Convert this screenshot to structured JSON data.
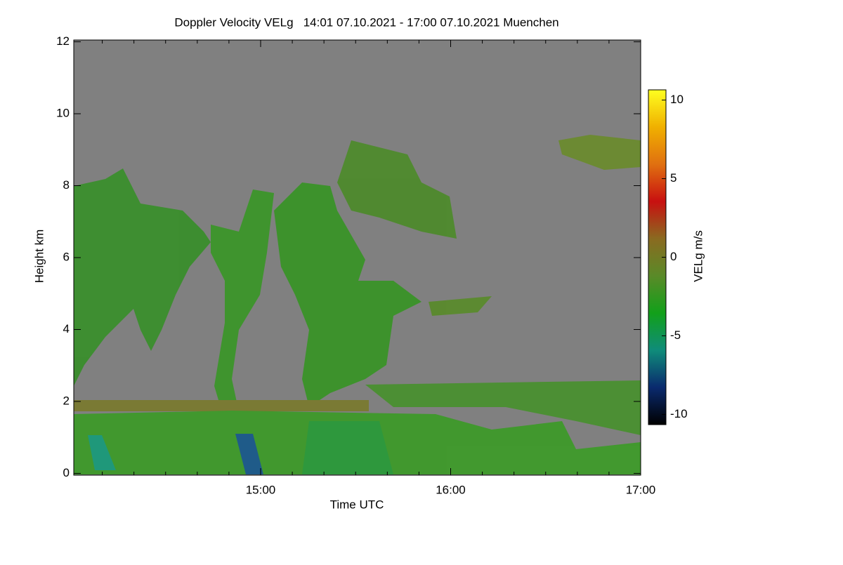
{
  "chart_data": {
    "type": "heatmap",
    "title": "Doppler Velocity VELg   14:01 07.10.2021 - 17:00 07.10.2021 Muenchen",
    "xlabel": "Time UTC",
    "ylabel": "Height km",
    "xlim": [
      14.0167,
      17.0
    ],
    "xticks": [
      {
        "value": 15,
        "label": "15:00"
      },
      {
        "value": 16,
        "label": "16:00"
      },
      {
        "value": 17,
        "label": "17:00"
      }
    ],
    "xminorticks": [
      14.1667,
      14.3333,
      14.5,
      14.6667,
      14.8333,
      15.1667,
      15.3333,
      15.5,
      15.6667,
      15.8333,
      16.1667,
      16.3333,
      16.5,
      16.6667,
      16.8333
    ],
    "ylim": [
      -0.05,
      12.05
    ],
    "yticks": [
      0,
      2,
      4,
      6,
      8,
      10,
      12
    ],
    "colorbar": {
      "label": "VELg m/s",
      "clim": [
        -10.65,
        10.65
      ],
      "ticks": [
        10,
        5,
        0,
        -5,
        -10
      ],
      "colormap": [
        "#000000",
        "#0a2a6e",
        "#0f8c7a",
        "#12a01a",
        "#5a8a28",
        "#8a6a20",
        "#c81010",
        "#e07010",
        "#f0b000",
        "#ffff20"
      ]
    },
    "background_color": "#808080"
  }
}
